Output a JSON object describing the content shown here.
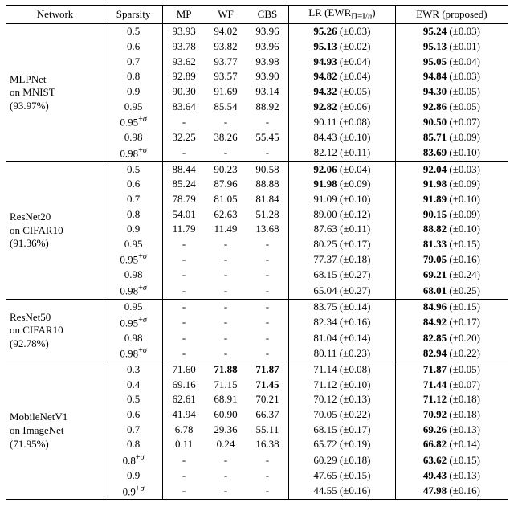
{
  "columns": {
    "network": "Network",
    "sparsity": "Sparsity",
    "mp": "MP",
    "wf": "WF",
    "cbs": "CBS",
    "lr": "LR (EWR<sub>Π=I/n</sub>)",
    "ewr": "EWR (proposed)"
  },
  "lr_header_parts": {
    "prefix": "LR (EWR",
    "sub": "Π=I/",
    "subItalic": "n",
    "suffix": ")"
  },
  "groups": [
    {
      "network_lines": [
        "MLPNet",
        "on MNIST",
        "(93.97%)"
      ],
      "rows": [
        {
          "sparsity": "0.5",
          "mp": "93.93",
          "wf": "94.02",
          "cbs": "93.96",
          "lr": {
            "val": "95.26",
            "pm": "0.03",
            "bold": true
          },
          "ewr": {
            "val": "95.24",
            "pm": "0.03",
            "bold": true
          }
        },
        {
          "sparsity": "0.6",
          "mp": "93.78",
          "wf": "93.82",
          "cbs": "93.96",
          "lr": {
            "val": "95.13",
            "pm": "0.02",
            "bold": true
          },
          "ewr": {
            "val": "95.13",
            "pm": "0.01",
            "bold": true
          }
        },
        {
          "sparsity": "0.7",
          "mp": "93.62",
          "wf": "93.77",
          "cbs": "93.98",
          "lr": {
            "val": "94.93",
            "pm": "0.04",
            "bold": true
          },
          "ewr": {
            "val": "95.05",
            "pm": "0.04",
            "bold": true
          }
        },
        {
          "sparsity": "0.8",
          "mp": "92.89",
          "wf": "93.57",
          "cbs": "93.90",
          "lr": {
            "val": "94.82",
            "pm": "0.04",
            "bold": true
          },
          "ewr": {
            "val": "94.84",
            "pm": "0.03",
            "bold": true
          }
        },
        {
          "sparsity": "0.9",
          "mp": "90.30",
          "wf": "91.69",
          "cbs": "93.14",
          "lr": {
            "val": "94.32",
            "pm": "0.05",
            "bold": true
          },
          "ewr": {
            "val": "94.30",
            "pm": "0.05",
            "bold": true
          }
        },
        {
          "sparsity": "0.95",
          "mp": "83.64",
          "wf": "85.54",
          "cbs": "88.92",
          "lr": {
            "val": "92.82",
            "pm": "0.06",
            "bold": true
          },
          "ewr": {
            "val": "92.86",
            "pm": "0.05",
            "bold": true
          }
        },
        {
          "sparsity": "0.95",
          "sigma": true,
          "mp": "-",
          "wf": "-",
          "cbs": "-",
          "lr": {
            "val": "90.11",
            "pm": "0.08",
            "bold": false
          },
          "ewr": {
            "val": "90.50",
            "pm": "0.07",
            "bold": true
          }
        },
        {
          "sparsity": "0.98",
          "mp": "32.25",
          "wf": "38.26",
          "cbs": "55.45",
          "lr": {
            "val": "84.43",
            "pm": "0.10",
            "bold": false
          },
          "ewr": {
            "val": "85.71",
            "pm": "0.09",
            "bold": true
          }
        },
        {
          "sparsity": "0.98",
          "sigma": true,
          "mp": "-",
          "wf": "-",
          "cbs": "-",
          "lr": {
            "val": "82.12",
            "pm": "0.11",
            "bold": false
          },
          "ewr": {
            "val": "83.69",
            "pm": "0.10",
            "bold": true
          }
        }
      ]
    },
    {
      "network_lines": [
        "ResNet20",
        "on CIFAR10",
        "(91.36%)"
      ],
      "rows": [
        {
          "sparsity": "0.5",
          "mp": "88.44",
          "wf": "90.23",
          "cbs": "90.58",
          "lr": {
            "val": "92.06",
            "pm": "0.04",
            "bold": true
          },
          "ewr": {
            "val": "92.04",
            "pm": "0.03",
            "bold": true
          }
        },
        {
          "sparsity": "0.6",
          "mp": "85.24",
          "wf": "87.96",
          "cbs": "88.88",
          "lr": {
            "val": "91.98",
            "pm": "0.09",
            "bold": true
          },
          "ewr": {
            "val": "91.98",
            "pm": "0.09",
            "bold": true
          }
        },
        {
          "sparsity": "0.7",
          "mp": "78.79",
          "wf": "81.05",
          "cbs": "81.84",
          "lr": {
            "val": "91.09",
            "pm": "0.10",
            "bold": false
          },
          "ewr": {
            "val": "91.89",
            "pm": "0.10",
            "bold": true
          }
        },
        {
          "sparsity": "0.8",
          "mp": "54.01",
          "wf": "62.63",
          "cbs": "51.28",
          "lr": {
            "val": "89.00",
            "pm": "0.12",
            "bold": false
          },
          "ewr": {
            "val": "90.15",
            "pm": "0.09",
            "bold": true
          }
        },
        {
          "sparsity": "0.9",
          "mp": "11.79",
          "wf": "11.49",
          "cbs": "13.68",
          "lr": {
            "val": "87.63",
            "pm": "0.11",
            "bold": false
          },
          "ewr": {
            "val": "88.82",
            "pm": "0.10",
            "bold": true
          }
        },
        {
          "sparsity": "0.95",
          "mp": "-",
          "wf": "-",
          "cbs": "-",
          "lr": {
            "val": "80.25",
            "pm": "0.17",
            "bold": false
          },
          "ewr": {
            "val": "81.33",
            "pm": "0.15",
            "bold": true
          }
        },
        {
          "sparsity": "0.95",
          "sigma": true,
          "mp": "-",
          "wf": "-",
          "cbs": "-",
          "lr": {
            "val": "77.37",
            "pm": "0.18",
            "bold": false
          },
          "ewr": {
            "val": "79.05",
            "pm": "0.16",
            "bold": true
          }
        },
        {
          "sparsity": "0.98",
          "mp": "-",
          "wf": "-",
          "cbs": "-",
          "lr": {
            "val": "68.15",
            "pm": "0.27",
            "bold": false
          },
          "ewr": {
            "val": "69.21",
            "pm": "0.24",
            "bold": true
          }
        },
        {
          "sparsity": "0.98",
          "sigma": true,
          "mp": "-",
          "wf": "-",
          "cbs": "-",
          "lr": {
            "val": "65.04",
            "pm": "0.27",
            "bold": false
          },
          "ewr": {
            "val": "68.01",
            "pm": "0.25",
            "bold": true
          }
        }
      ]
    },
    {
      "network_lines": [
        "ResNet50",
        "on CIFAR10",
        "(92.78%)"
      ],
      "rows": [
        {
          "sparsity": "0.95",
          "mp": "-",
          "wf": "-",
          "cbs": "-",
          "lr": {
            "val": "83.75",
            "pm": "0.14",
            "bold": false
          },
          "ewr": {
            "val": "84.96",
            "pm": "0.15",
            "bold": true
          }
        },
        {
          "sparsity": "0.95",
          "sigma": true,
          "mp": "-",
          "wf": "-",
          "cbs": "-",
          "lr": {
            "val": "82.34",
            "pm": "0.16",
            "bold": false
          },
          "ewr": {
            "val": "84.92",
            "pm": "0.17",
            "bold": true
          }
        },
        {
          "sparsity": "0.98",
          "mp": "-",
          "wf": "-",
          "cbs": "-",
          "lr": {
            "val": "81.04",
            "pm": "0.14",
            "bold": false
          },
          "ewr": {
            "val": "82.85",
            "pm": "0.20",
            "bold": true
          }
        },
        {
          "sparsity": "0.98",
          "sigma": true,
          "mp": "-",
          "wf": "-",
          "cbs": "-",
          "lr": {
            "val": "80.11",
            "pm": "0.23",
            "bold": false
          },
          "ewr": {
            "val": "82.94",
            "pm": "0.22",
            "bold": true
          }
        }
      ]
    },
    {
      "network_lines": [
        "MobileNetV1",
        "on ImageNet",
        "(71.95%)"
      ],
      "rows": [
        {
          "sparsity": "0.3",
          "mp": "71.60",
          "wf": "71.88",
          "wfBold": true,
          "cbs": "71.87",
          "cbsBold": true,
          "lr": {
            "val": "71.14",
            "pm": "0.08",
            "bold": false
          },
          "ewr": {
            "val": "71.87",
            "pm": "0.05",
            "bold": true
          }
        },
        {
          "sparsity": "0.4",
          "mp": "69.16",
          "wf": "71.15",
          "cbs": "71.45",
          "cbsBold": true,
          "lr": {
            "val": "71.12",
            "pm": "0.10",
            "bold": false
          },
          "ewr": {
            "val": "71.44",
            "pm": "0.07",
            "bold": true
          }
        },
        {
          "sparsity": "0.5",
          "mp": "62.61",
          "wf": "68.91",
          "cbs": "70.21",
          "lr": {
            "val": "70.12",
            "pm": "0.13",
            "bold": false
          },
          "ewr": {
            "val": "71.12",
            "pm": "0.18",
            "bold": true
          }
        },
        {
          "sparsity": "0.6",
          "mp": "41.94",
          "wf": "60.90",
          "cbs": "66.37",
          "lr": {
            "val": "70.05",
            "pm": "0.22",
            "bold": false
          },
          "ewr": {
            "val": "70.92",
            "pm": "0.18",
            "bold": true
          }
        },
        {
          "sparsity": "0.7",
          "mp": "6.78",
          "wf": "29.36",
          "cbs": "55.11",
          "lr": {
            "val": "68.15",
            "pm": "0.17",
            "bold": false
          },
          "ewr": {
            "val": "69.26",
            "pm": "0.13",
            "bold": true
          }
        },
        {
          "sparsity": "0.8",
          "mp": "0.11",
          "wf": "0.24",
          "cbs": "16.38",
          "lr": {
            "val": "65.72",
            "pm": "0.19",
            "bold": false
          },
          "ewr": {
            "val": "66.82",
            "pm": "0.14",
            "bold": true
          }
        },
        {
          "sparsity": "0.8",
          "sigma": true,
          "mp": "-",
          "wf": "-",
          "cbs": "-",
          "lr": {
            "val": "60.29",
            "pm": "0.18",
            "bold": false
          },
          "ewr": {
            "val": "63.62",
            "pm": "0.15",
            "bold": true
          }
        },
        {
          "sparsity": "0.9",
          "mp": "-",
          "wf": "-",
          "cbs": "-",
          "lr": {
            "val": "47.65",
            "pm": "0.15",
            "bold": false
          },
          "ewr": {
            "val": "49.43",
            "pm": "0.13",
            "bold": true
          }
        },
        {
          "sparsity": "0.9",
          "sigma": true,
          "mp": "-",
          "wf": "-",
          "cbs": "-",
          "lr": {
            "val": "44.55",
            "pm": "0.16",
            "bold": false
          },
          "ewr": {
            "val": "47.98",
            "pm": "0.16",
            "bold": true
          }
        }
      ]
    }
  ]
}
